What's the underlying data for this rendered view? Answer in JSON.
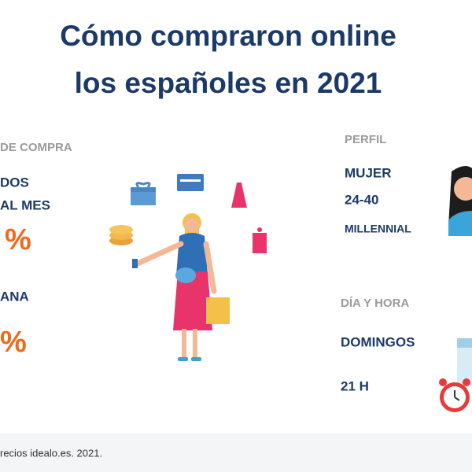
{
  "header": {
    "title_line1": "Cómo compraron online",
    "title_line2": "los españoles en 2021"
  },
  "frequency": {
    "heading": "DE COMPRA",
    "item1_line1": "DOS",
    "item1_line2": "AL MES",
    "item1_value": "%",
    "item2_label": "ANA",
    "item2_value": "%"
  },
  "profile": {
    "heading": "PERFIL",
    "gender": "MUJER",
    "age": "24-40",
    "generation": "MILLENNIAL"
  },
  "time": {
    "heading": "DÍA Y HORA",
    "day": "DOMINGOS",
    "hour": "21 H"
  },
  "footer": {
    "source": "recios idealo.es. 2021."
  }
}
